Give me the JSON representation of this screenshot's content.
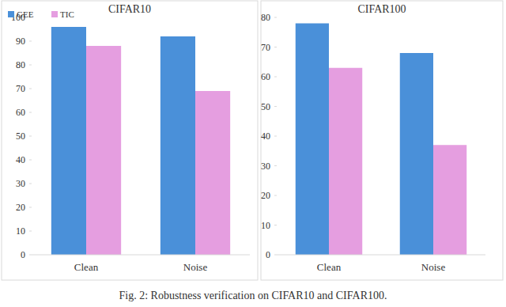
{
  "chart_data": [
    {
      "type": "bar",
      "title": "CIFAR10",
      "categories": [
        "Clean",
        "Noise"
      ],
      "series": [
        {
          "name": "GEE",
          "color": "#4a90d9",
          "values": [
            96,
            92
          ]
        },
        {
          "name": "TIC",
          "color": "#e59ee0",
          "values": [
            88,
            69
          ]
        }
      ],
      "ylim": [
        0,
        100
      ],
      "yticks": [
        0,
        10,
        20,
        30,
        40,
        50,
        60,
        70,
        80,
        90,
        100
      ],
      "grid": false,
      "legend": "top-left"
    },
    {
      "type": "bar",
      "title": "CIFAR100",
      "categories": [
        "Clean",
        "Noise"
      ],
      "series": [
        {
          "name": "GEE",
          "color": "#4a90d9",
          "values": [
            78,
            68
          ]
        },
        {
          "name": "TIC",
          "color": "#e59ee0",
          "values": [
            63,
            37
          ]
        }
      ],
      "ylim": [
        0,
        80
      ],
      "yticks": [
        0,
        10,
        20,
        30,
        40,
        50,
        60,
        70,
        80
      ],
      "grid": false
    }
  ],
  "caption": "Fig. 2: Robustness verification on CIFAR10 and CIFAR100."
}
